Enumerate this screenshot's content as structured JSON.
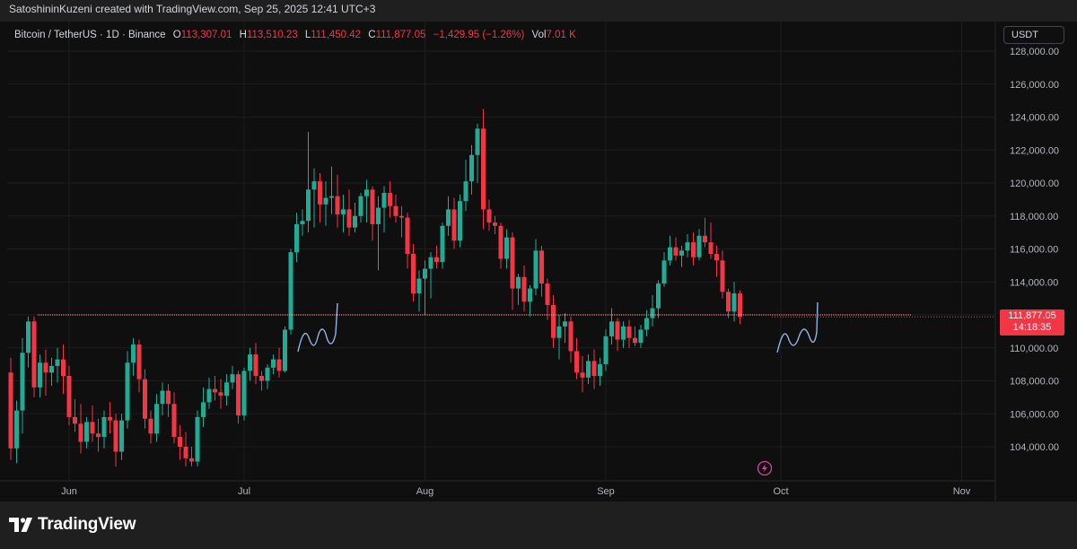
{
  "credit": "SatoshininKuzeni created with TradingView.com, Sep 25, 2025 12:41 UTC+3",
  "legend": {
    "symbol": "Bitcoin / TetherUS · 1D · Binance",
    "open_label": "O",
    "open": "113,307.01",
    "high_label": "H",
    "high": "113,510.23",
    "low_label": "L",
    "low": "111,450.42",
    "close_label": "C",
    "close": "111,877.05",
    "change": "−1,429.95 (−1.26%)",
    "vol_label": "Vol",
    "vol": "7.01 K"
  },
  "currency": "USDT",
  "price_tag": {
    "price": "111,877.05",
    "countdown": "14:18:35"
  },
  "brand": "TradingView",
  "colors": {
    "up": "#22ab94",
    "down": "#f23645",
    "grid": "#1e1e1e",
    "text": "#b2b5be",
    "drawing": "#90b4e8",
    "level": "#f7a8b1"
  },
  "chart_data": {
    "type": "candlestick",
    "symbol": "BTCUSDT",
    "interval": "1D",
    "ylim": [
      102800,
      128400
    ],
    "yticks": [
      104000,
      106000,
      108000,
      110000,
      112000,
      114000,
      116000,
      118000,
      120000,
      122000,
      124000,
      126000,
      128000
    ],
    "ytick_labels": [
      "104,000.00",
      "106,000.00",
      "108,000.00",
      "110,000.00",
      "112,000.00",
      "114,000.00",
      "116,000.00",
      "118,000.00",
      "120,000.00",
      "122,000.00",
      "124,000.00",
      "126,000.00",
      "128,000.00"
    ],
    "x_labels": [
      "Jun",
      "Jul",
      "Aug",
      "Sep",
      "Oct",
      "Nov"
    ],
    "x_label_dates": [
      "2025-06-01",
      "2025-07-01",
      "2025-08-01",
      "2025-09-01",
      "2025-10-01",
      "2025-11-01"
    ],
    "horizontal_level": 112000,
    "first_date": "2025-05-22",
    "candles": [
      [
        108500,
        109400,
        103200,
        103900
      ],
      [
        103900,
        106800,
        103000,
        106200
      ],
      [
        106200,
        110600,
        104800,
        109700
      ],
      [
        109700,
        111900,
        108800,
        111600
      ],
      [
        111600,
        111900,
        107000,
        107600
      ],
      [
        107600,
        109600,
        107000,
        109100
      ],
      [
        109100,
        109900,
        107100,
        108500
      ],
      [
        108500,
        109400,
        107700,
        108900
      ],
      [
        108900,
        110000,
        107900,
        109300
      ],
      [
        109300,
        110200,
        107200,
        108300
      ],
      [
        108300,
        108900,
        105300,
        105800
      ],
      [
        105800,
        106900,
        104900,
        105400
      ],
      [
        105400,
        106600,
        103600,
        104300
      ],
      [
        104300,
        105800,
        103900,
        105500
      ],
      [
        105500,
        106500,
        104300,
        104800
      ],
      [
        104800,
        105700,
        103700,
        104600
      ],
      [
        104600,
        106200,
        103900,
        105800
      ],
      [
        105800,
        106700,
        104800,
        105600
      ],
      [
        105600,
        106000,
        102800,
        103700
      ],
      [
        103700,
        106000,
        103200,
        105600
      ],
      [
        105600,
        109800,
        105100,
        109100
      ],
      [
        109100,
        110600,
        108300,
        110200
      ],
      [
        110200,
        110500,
        107300,
        108100
      ],
      [
        108100,
        108700,
        105100,
        105700
      ],
      [
        105700,
        106200,
        104200,
        104800
      ],
      [
        104800,
        107200,
        104300,
        106600
      ],
      [
        106600,
        107900,
        105900,
        107400
      ],
      [
        107400,
        107800,
        105800,
        106600
      ],
      [
        106600,
        107300,
        104200,
        104600
      ],
      [
        104600,
        105300,
        103200,
        104000
      ],
      [
        104000,
        104900,
        102800,
        103300
      ],
      [
        103300,
        104000,
        102800,
        103100
      ],
      [
        103100,
        106200,
        102800,
        105800
      ],
      [
        105800,
        107600,
        105200,
        106700
      ],
      [
        106700,
        108200,
        106300,
        107500
      ],
      [
        107500,
        108300,
        106800,
        107300
      ],
      [
        107300,
        108100,
        106300,
        107100
      ],
      [
        107100,
        108400,
        106500,
        107900
      ],
      [
        107900,
        108900,
        107500,
        108400
      ],
      [
        108400,
        108600,
        105400,
        105900
      ],
      [
        105900,
        108800,
        105600,
        108600
      ],
      [
        108600,
        110000,
        108000,
        109600
      ],
      [
        109600,
        110300,
        107800,
        108300
      ],
      [
        108300,
        108600,
        107400,
        108000
      ],
      [
        108000,
        109000,
        107500,
        108800
      ],
      [
        108800,
        109600,
        108400,
        109300
      ],
      [
        109300,
        110000,
        108200,
        108600
      ],
      [
        108600,
        111300,
        108500,
        111100
      ],
      [
        111100,
        116000,
        110800,
        115800
      ],
      [
        115800,
        118200,
        115200,
        117500
      ],
      [
        117500,
        118400,
        116800,
        117700
      ],
      [
        117700,
        123100,
        117000,
        119600
      ],
      [
        119600,
        120900,
        117300,
        120100
      ],
      [
        120100,
        120600,
        117600,
        118700
      ],
      [
        118700,
        120100,
        117400,
        119100
      ],
      [
        119100,
        121000,
        118100,
        119200
      ],
      [
        119200,
        120500,
        117300,
        118100
      ],
      [
        118100,
        119300,
        117000,
        118400
      ],
      [
        118400,
        119600,
        116800,
        117300
      ],
      [
        117300,
        118800,
        117000,
        118000
      ],
      [
        118000,
        119400,
        117600,
        119200
      ],
      [
        119200,
        120200,
        117600,
        119600
      ],
      [
        119600,
        119800,
        116500,
        117500
      ],
      [
        117500,
        119200,
        114700,
        118500
      ],
      [
        118500,
        119800,
        117000,
        119400
      ],
      [
        119400,
        120100,
        117900,
        118600
      ],
      [
        118600,
        119300,
        117600,
        118000
      ],
      [
        118000,
        118600,
        116700,
        117900
      ],
      [
        117900,
        118200,
        114800,
        115700
      ],
      [
        115700,
        116300,
        112800,
        113300
      ],
      [
        113300,
        114700,
        112200,
        114200
      ],
      [
        114200,
        115300,
        112000,
        114800
      ],
      [
        114800,
        115800,
        113000,
        115500
      ],
      [
        115500,
        116200,
        114800,
        115200
      ],
      [
        115200,
        117600,
        114800,
        117400
      ],
      [
        117400,
        119200,
        116800,
        118400
      ],
      [
        118400,
        119100,
        116000,
        116500
      ],
      [
        116500,
        119300,
        116100,
        118900
      ],
      [
        118900,
        121400,
        118300,
        120100
      ],
      [
        120100,
        122300,
        119300,
        121700
      ],
      [
        121700,
        123600,
        120000,
        123300
      ],
      [
        123300,
        124500,
        117200,
        118400
      ],
      [
        118400,
        119000,
        117100,
        117600
      ],
      [
        117600,
        118000,
        116900,
        117400
      ],
      [
        117400,
        117600,
        114800,
        115400
      ],
      [
        115400,
        117200,
        114800,
        116700
      ],
      [
        116700,
        117000,
        112300,
        113600
      ],
      [
        113600,
        114500,
        112600,
        114300
      ],
      [
        114300,
        115000,
        112200,
        112800
      ],
      [
        112800,
        113800,
        111900,
        113600
      ],
      [
        113600,
        116600,
        113200,
        115900
      ],
      [
        115900,
        116200,
        113100,
        113900
      ],
      [
        113900,
        114200,
        111700,
        112600
      ],
      [
        112600,
        113200,
        110000,
        110600
      ],
      [
        110600,
        112000,
        109300,
        111300
      ],
      [
        111300,
        112100,
        110300,
        111600
      ],
      [
        111600,
        111900,
        109100,
        109800
      ],
      [
        109800,
        110600,
        108100,
        108500
      ],
      [
        108500,
        109500,
        107300,
        108200
      ],
      [
        108200,
        109600,
        107800,
        109200
      ],
      [
        109200,
        109900,
        107500,
        108300
      ],
      [
        108300,
        109400,
        107700,
        109000
      ],
      [
        109000,
        111100,
        108600,
        110700
      ],
      [
        110700,
        112400,
        110200,
        111600
      ],
      [
        111600,
        111800,
        109800,
        110500
      ],
      [
        110500,
        111600,
        110000,
        111300
      ],
      [
        111300,
        111700,
        110000,
        110600
      ],
      [
        110600,
        111300,
        110100,
        110300
      ],
      [
        110300,
        111400,
        110000,
        111100
      ],
      [
        111100,
        112300,
        110700,
        111800
      ],
      [
        111800,
        113200,
        111300,
        112400
      ],
      [
        112400,
        114100,
        111800,
        113900
      ],
      [
        113900,
        115800,
        113700,
        115300
      ],
      [
        115300,
        116800,
        115000,
        116100
      ],
      [
        116100,
        116700,
        115300,
        115600
      ],
      [
        115600,
        116200,
        114900,
        115900
      ],
      [
        115900,
        116900,
        115500,
        116400
      ],
      [
        116400,
        117000,
        115000,
        115500
      ],
      [
        115500,
        117200,
        115300,
        116800
      ],
      [
        116800,
        117900,
        116100,
        116400
      ],
      [
        116400,
        117600,
        115400,
        115700
      ],
      [
        115700,
        116200,
        114300,
        115300
      ],
      [
        115300,
        115900,
        113000,
        113400
      ],
      [
        113400,
        113600,
        111800,
        112200
      ],
      [
        112200,
        114000,
        111600,
        113300
      ],
      [
        113300,
        113500,
        111450,
        111877
      ]
    ],
    "trendlines_note": "hand-drawn wave annotations",
    "last_price": "111,877.05"
  }
}
